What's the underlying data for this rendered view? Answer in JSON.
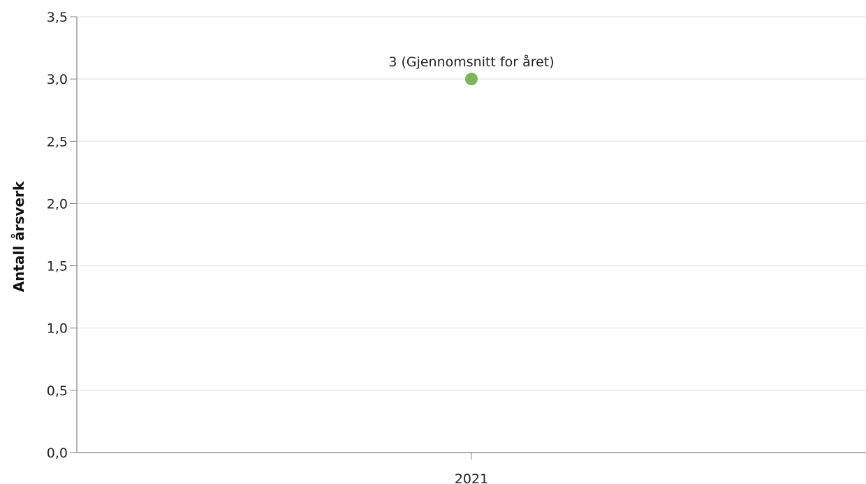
{
  "chart_data": {
    "type": "scatter",
    "title": "",
    "xlabel": "",
    "ylabel": "Antall årsverk",
    "categories": [
      "2021"
    ],
    "ylim": [
      0,
      3.5
    ],
    "yticks": [
      0,
      0.5,
      1,
      1.5,
      2,
      2.5,
      3,
      3.5
    ],
    "ytick_labels": [
      "0,0",
      "0,5",
      "1,0",
      "1,5",
      "2,0",
      "2,5",
      "3,0",
      "3,5"
    ],
    "grid": true,
    "series": [
      {
        "color": "#7cb55b",
        "points": [
          {
            "x": "2021",
            "y": 3,
            "label": "3 (Gjennomsnitt for året)"
          }
        ]
      }
    ]
  }
}
